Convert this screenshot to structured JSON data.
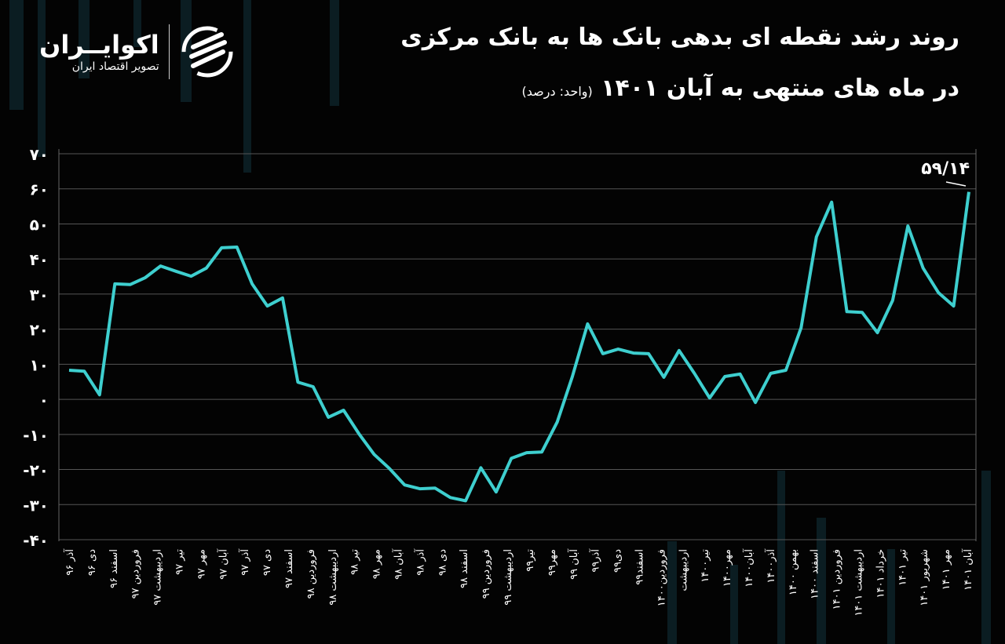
{
  "logo": {
    "name": "اکوایــران",
    "tagline": "تصویر اقتصاد ایران"
  },
  "header": {
    "title_line1": "روند رشد نقطه ای بدهی بانک ها به بانک مرکزی",
    "title_line2": "در ماه های منتهی به آبان ۱۴۰۱",
    "unit": "(واحد: درصد)"
  },
  "colors": {
    "background": "#030303",
    "line": "#3ecfcf",
    "grid": "#555555",
    "text": "#ffffff"
  },
  "chart_data": {
    "type": "line",
    "ylim": [
      -40,
      70
    ],
    "yticks": [
      70,
      60,
      50,
      40,
      30,
      20,
      10,
      0,
      -10,
      -20,
      -30,
      -40
    ],
    "ytick_labels": [
      "۷۰",
      "۶۰",
      "۵۰",
      "۴۰",
      "۳۰",
      "۲۰",
      "۱۰",
      "۰",
      "-۱۰",
      "-۲۰",
      "-۳۰",
      "-۴۰"
    ],
    "grid": true,
    "x_labels": [
      "آذر ۹۶",
      "دی ۹۶",
      "اسفند ۹۶",
      "فروردین ۹۷",
      "اردیبهشت ۹۷",
      "تیر ۹۷",
      "مهر ۹۷",
      "آبان ۹۷",
      "آذر ۹۷",
      "دی ۹۷",
      "اسفند ۹۷",
      "فروردین ۹۸",
      "اردیبهشت ۹۸",
      "تیر ۹۸",
      "مهر ۹۸",
      "آبان ۹۸",
      "آذر ۹۸",
      "دی ۹۸",
      "اسفند ۹۸",
      "فروردین ۹۹",
      "اردیبهشت ۹۹",
      "تیر۹۹",
      "مهر۹۹",
      "آبان ۹۹",
      "آذر۹۹",
      "دی۹۹",
      "اسفند۹۹",
      "فروردین۱۴۰۰",
      "اردیبهشت",
      "تیر۱۴۰۰",
      "مهر۱۴۰۰",
      "آبان۱۴۰۰",
      "آذر۱۴۰۰",
      "بهمن ۱۴۰۰",
      "اسفند ۱۴۰۰",
      "فروردین ۱۴۰۱",
      "اردیبهشت ۱۴۰۱",
      "خرداد ۱۴۰۱",
      "تیر ۱۴۰۱",
      "شهریور ۱۴۰۱",
      "مهر ۱۴۰۱",
      "آبان ۱۴۰۱"
    ],
    "series": [
      {
        "values": [
          8.3,
          8.0,
          1.3,
          32.9,
          32.7,
          34.7,
          38.0,
          36.5,
          35.1,
          37.4,
          43.2,
          43.4,
          32.9,
          26.6,
          28.9,
          4.9,
          3.6,
          -5.1,
          -3.1,
          -9.8,
          -15.7,
          -19.7,
          -24.4,
          -25.5,
          -25.3,
          -28.0,
          -28.9,
          -19.5,
          -26.4,
          -16.8,
          -15.2,
          -15.0,
          -6.5,
          6.5,
          21.5,
          13.0,
          14.3,
          13.2,
          13.0,
          6.3,
          13.9,
          7.4,
          0.4,
          6.5,
          7.2,
          -0.9,
          7.4,
          8.3,
          20.4,
          46.3,
          56.2,
          25.0,
          24.8,
          19.0,
          28.2,
          49.4,
          37.4,
          30.4,
          26.6,
          59.14
        ]
      }
    ],
    "annotation": {
      "text": "۵۹/۱۴",
      "target": "last-point"
    }
  }
}
